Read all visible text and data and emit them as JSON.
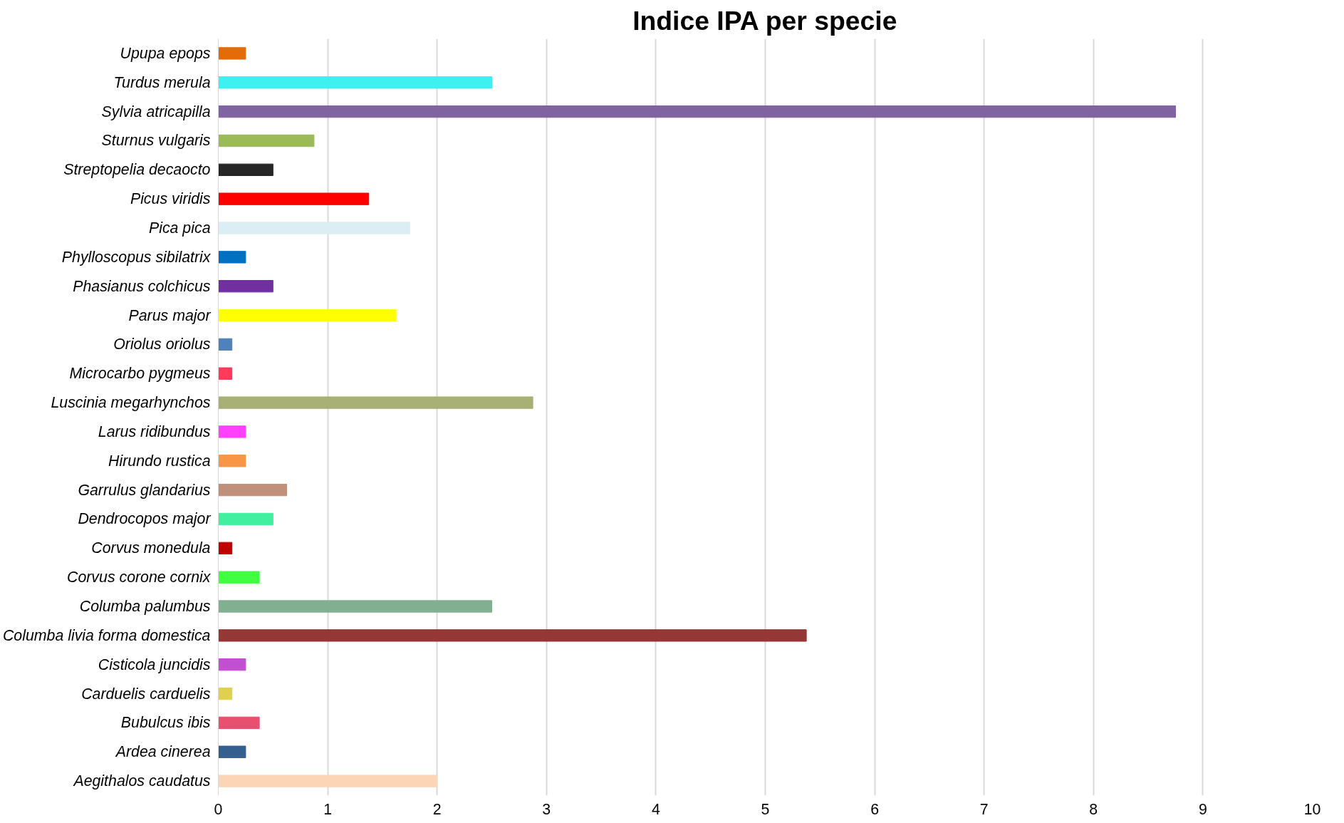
{
  "chart_data": {
    "type": "bar",
    "orientation": "horizontal",
    "title": "Indice IPA per specie",
    "categories": [
      "Upupa epops",
      "Turdus merula",
      "Sylvia atricapilla",
      "Sturnus vulgaris",
      "Streptopelia decaocto",
      "Picus viridis",
      "Pica pica",
      "Phylloscopus sibilatrix",
      "Phasianus colchicus",
      "Parus major",
      "Oriolus oriolus",
      "Microcarbo pygmeus",
      "Luscinia megarhynchos",
      "Larus ridibundus",
      "Hirundo rustica",
      "Garrulus glandarius",
      "Dendrocopos major",
      "Corvus monedula",
      "Corvus corone cornix",
      "Columba palumbus",
      "Columba livia forma domestica",
      "Cisticola juncidis",
      "Carduelis carduelis",
      "Bubulcus ibis",
      "Ardea cinerea",
      "Aegithalos caudatus"
    ],
    "values": [
      0.25,
      2.5,
      8.75,
      0.875,
      0.5,
      1.375,
      1.75,
      0.25,
      0.5,
      1.625,
      0.125,
      0.125,
      2.875,
      0.25,
      0.25,
      0.625,
      0.5,
      0.125,
      0.375,
      2.5,
      5.375,
      0.25,
      0.125,
      0.375,
      0.25,
      2.0
    ],
    "colors": [
      "#e36c09",
      "#3ff0f0",
      "#8064a2",
      "#9bbb59",
      "#262626",
      "#ff0000",
      "#daeef3",
      "#0070c0",
      "#7030a0",
      "#ffff00",
      "#4f81bd",
      "#ff3a5a",
      "#a9b076",
      "#ff40ff",
      "#f79646",
      "#c0907a",
      "#40f0a0",
      "#c00000",
      "#40ff40",
      "#80b090",
      "#953735",
      "#c050d0",
      "#e0d050",
      "#e85070",
      "#345f8f",
      "#fbd5b5"
    ],
    "xlim": [
      0,
      10
    ],
    "xticks": [
      0,
      1,
      2,
      3,
      4,
      5,
      6,
      7,
      8,
      9,
      10
    ],
    "grid": "x"
  }
}
